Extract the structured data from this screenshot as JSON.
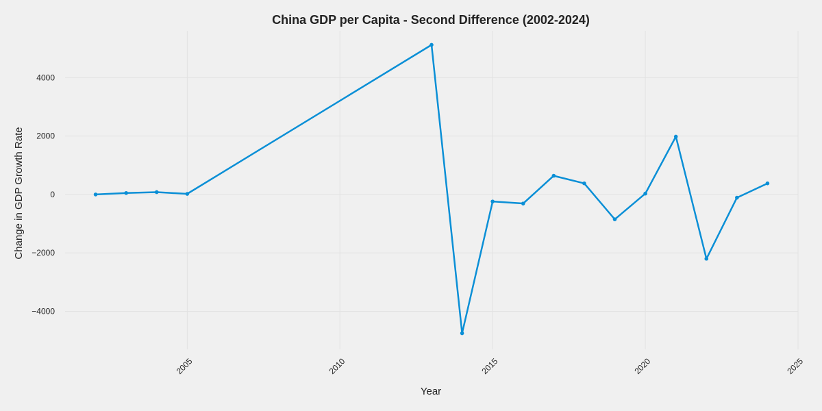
{
  "chart_data": {
    "type": "line",
    "title": "China GDP per Capita - Second Difference (2002-2024)",
    "xlabel": "Year",
    "ylabel": "Change in GDP Growth Rate",
    "xlim": [
      2001,
      2025
    ],
    "ylim": [
      -5300,
      5600
    ],
    "x_ticks": [
      2005,
      2010,
      2015,
      2020,
      2025
    ],
    "y_ticks": [
      -4000,
      -2000,
      0,
      2000,
      4000
    ],
    "y_tick_labels": [
      "−4000",
      "−2000",
      "0",
      "2000",
      "4000"
    ],
    "grid": true,
    "line_color": "#0a8fd6",
    "series": [
      {
        "x": [
          2002,
          2003,
          2004,
          2005,
          2013,
          2014,
          2015,
          2016,
          2017,
          2018,
          2019,
          2020,
          2021,
          2022,
          2023,
          2024
        ],
        "y": [
          0,
          50,
          80,
          20,
          5120,
          -4750,
          -240,
          -310,
          640,
          380,
          -850,
          30,
          1980,
          -2200,
          -110,
          380
        ]
      }
    ]
  }
}
